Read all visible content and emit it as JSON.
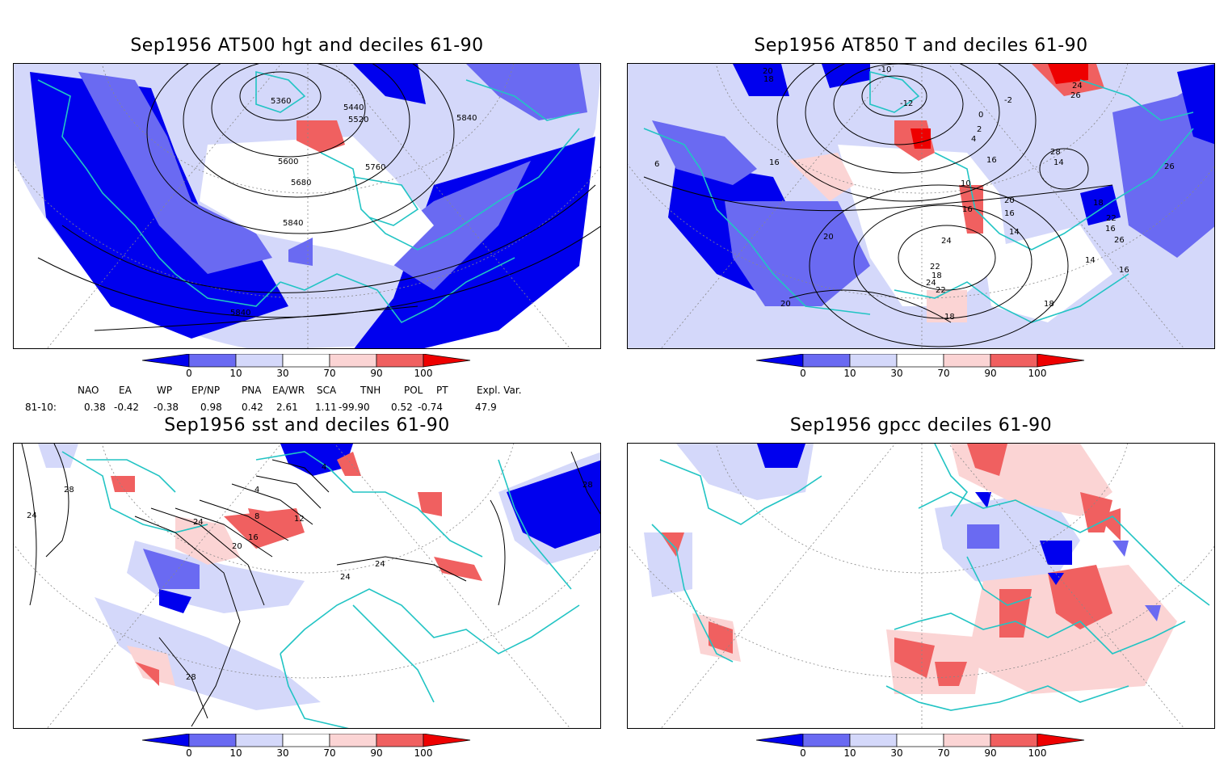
{
  "panels": [
    {
      "title": "Sep1956 AT500 hgt and deciles 61-90",
      "contour_labels": [
        "5360",
        "5440",
        "5520",
        "5840",
        "5600",
        "5760",
        "5680",
        "5840",
        "5840"
      ]
    },
    {
      "title": "Sep1956 AT850 T and deciles 61-90",
      "contour_labels": [
        "-10",
        "20",
        "18",
        "24",
        "26",
        "-2",
        "-12",
        "0",
        "2",
        "4",
        "6",
        "16",
        "16",
        "10",
        "14",
        "28",
        "26",
        "16",
        "20",
        "16",
        "18",
        "22",
        "20",
        "14",
        "24",
        "26",
        "22",
        "18",
        "24",
        "22",
        "20",
        "18",
        "14",
        "16",
        "18",
        "16"
      ]
    },
    {
      "title": "Sep1956 sst and deciles 61-90",
      "contour_labels": [
        "28",
        "24",
        "24",
        "4",
        "8",
        "12",
        "16",
        "20",
        "4",
        "24",
        "24",
        "28",
        "28"
      ]
    },
    {
      "title": "Sep1956 gpcc deciles 61-90",
      "contour_labels": []
    }
  ],
  "colorbar": {
    "ticks": [
      "0",
      "10",
      "30",
      "70",
      "90",
      "100"
    ],
    "colors": [
      "#0000ee",
      "#6a6af2",
      "#d4d8fa",
      "#ffffff",
      "#fbd4d4",
      "#f06060",
      "#ee0000"
    ]
  },
  "indices": {
    "headers": [
      "NAO",
      "EA",
      "WP",
      "EP/NP",
      "PNA",
      "EA/WR",
      "SCA",
      "TNH",
      "POL",
      "PT",
      "Expl. Var."
    ],
    "row_label": "81-10:",
    "values": [
      "0.38",
      "-0.42",
      "-0.38",
      "0.98",
      "0.42",
      "2.61",
      "1.11",
      "-99.90",
      "0.52",
      "-0.74",
      "47.9"
    ]
  },
  "colors": {
    "coast": "#22c4c4",
    "contour": "#000000",
    "grid": "#888888"
  }
}
